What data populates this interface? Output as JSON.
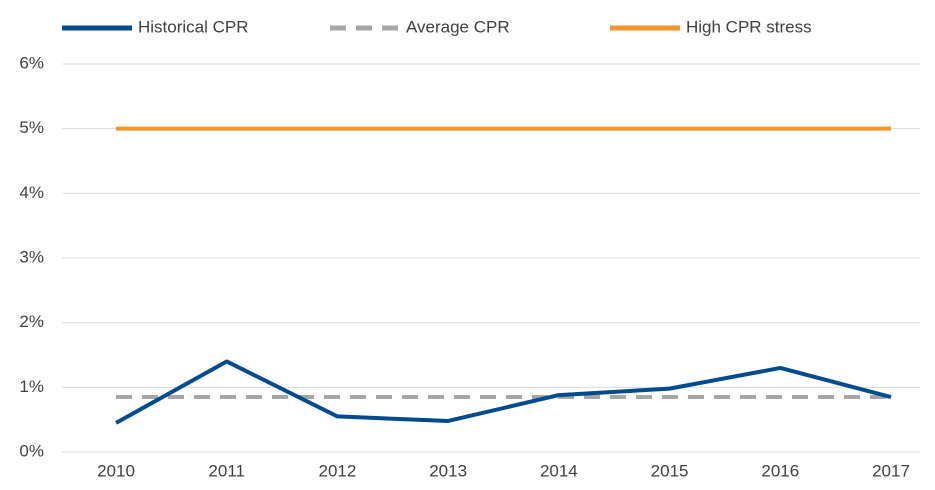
{
  "chart_data": {
    "type": "line",
    "categories": [
      "2010",
      "2011",
      "2012",
      "2013",
      "2014",
      "2015",
      "2016",
      "2017"
    ],
    "series": [
      {
        "name": "Historical CPR",
        "color": "#004b8d",
        "dashed": false,
        "values": [
          0.45,
          1.4,
          0.55,
          0.48,
          0.88,
          0.98,
          1.3,
          0.85
        ]
      },
      {
        "name": "Average CPR",
        "color": "#a6a6a6",
        "dashed": true,
        "values": [
          0.85,
          0.85,
          0.85,
          0.85,
          0.85,
          0.85,
          0.85,
          0.85
        ]
      },
      {
        "name": "High CPR stress",
        "color": "#f0962f",
        "dashed": false,
        "values": [
          5,
          5,
          5,
          5,
          5,
          5,
          5,
          5
        ]
      }
    ],
    "ylim": [
      0,
      6
    ],
    "yticks": [
      {
        "value": 0,
        "label": "0%"
      },
      {
        "value": 1,
        "label": "1%"
      },
      {
        "value": 2,
        "label": "2%"
      },
      {
        "value": 3,
        "label": "3%"
      },
      {
        "value": 4,
        "label": "4%"
      },
      {
        "value": 5,
        "label": "5%"
      },
      {
        "value": 6,
        "label": "6%"
      }
    ],
    "grid": true,
    "legend": "top"
  }
}
